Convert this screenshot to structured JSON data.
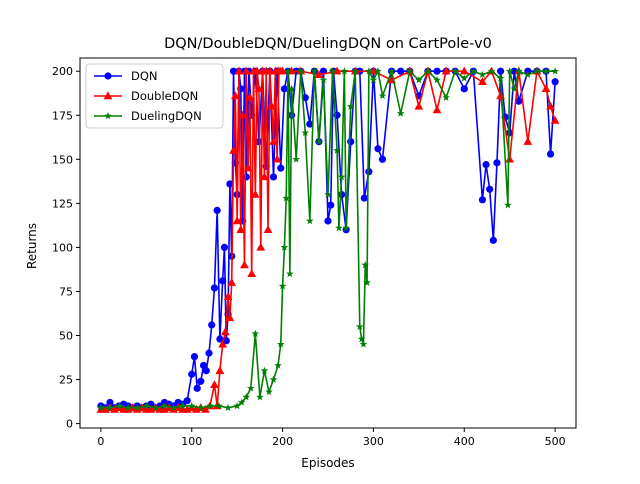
{
  "chart_data": {
    "type": "line",
    "title": "DQN/DoubleDQN/DuelingDQN on CartPole-v0",
    "xlabel": "Episodes",
    "ylabel": "Returns",
    "xlim": [
      -23,
      523
    ],
    "ylim": [
      -2.5,
      207.5
    ],
    "xticks": [
      0,
      100,
      200,
      300,
      400,
      500
    ],
    "yticks": [
      0,
      25,
      50,
      75,
      100,
      125,
      150,
      175,
      200
    ],
    "grid": false,
    "legend_position": "top-left",
    "series": [
      {
        "name": "DQN",
        "color": "#0000ff",
        "marker": "circle",
        "x": [
          0,
          5,
          10,
          15,
          20,
          25,
          30,
          35,
          40,
          45,
          50,
          55,
          60,
          65,
          70,
          75,
          80,
          85,
          90,
          95,
          100,
          103,
          106,
          110,
          113,
          116,
          119,
          122,
          125,
          128,
          131,
          134,
          136,
          138,
          140,
          142,
          144,
          146,
          148,
          150,
          152,
          154,
          156,
          158,
          160,
          163,
          166,
          170,
          174,
          178,
          182,
          186,
          190,
          194,
          198,
          202,
          206,
          210,
          215,
          220,
          225,
          230,
          235,
          240,
          245,
          250,
          253,
          256,
          260,
          265,
          270,
          275,
          280,
          285,
          290,
          295,
          300,
          305,
          310,
          320,
          330,
          340,
          350,
          360,
          370,
          380,
          390,
          400,
          410,
          420,
          424,
          428,
          432,
          436,
          440,
          445,
          450,
          455,
          460,
          470,
          480,
          490,
          495,
          500
        ],
        "y": [
          10,
          9,
          12,
          9,
          10,
          11,
          10,
          9,
          10,
          9,
          10,
          11,
          9,
          10,
          12,
          11,
          10,
          12,
          11,
          13,
          28,
          38,
          20,
          24,
          33,
          30,
          40,
          56,
          77,
          121,
          48,
          81,
          100,
          47,
          62,
          136,
          95,
          200,
          148,
          130,
          200,
          190,
          115,
          200,
          140,
          200,
          175,
          200,
          160,
          200,
          146,
          200,
          140,
          200,
          145,
          190,
          200,
          175,
          200,
          200,
          185,
          170,
          200,
          160,
          200,
          115,
          124,
          200,
          175,
          130,
          110,
          160,
          200,
          200,
          128,
          143,
          200,
          156,
          150,
          200,
          200,
          200,
          186,
          200,
          200,
          200,
          200,
          190,
          200,
          127,
          147,
          133,
          104,
          148,
          200,
          174,
          165,
          200,
          183,
          200,
          200,
          200,
          153,
          194
        ]
      },
      {
        "name": "DoubleDQN",
        "color": "#ff0000",
        "marker": "triangle",
        "x": [
          0,
          5,
          10,
          15,
          20,
          25,
          30,
          35,
          40,
          45,
          50,
          55,
          60,
          65,
          70,
          75,
          80,
          85,
          90,
          95,
          100,
          105,
          110,
          115,
          120,
          125,
          128,
          131,
          134,
          137,
          140,
          142,
          144,
          146,
          148,
          150,
          152,
          154,
          156,
          158,
          160,
          162,
          164,
          166,
          168,
          170,
          172,
          174,
          176,
          178,
          180,
          182,
          184,
          186,
          188,
          190,
          192,
          194,
          196,
          198,
          200,
          210,
          220,
          240,
          260,
          280,
          300,
          320,
          340,
          350,
          360,
          370,
          380,
          400,
          420,
          430,
          440,
          450,
          460,
          470,
          480,
          490,
          495,
          500
        ],
        "y": [
          8,
          8,
          9,
          8,
          9,
          8,
          8,
          9,
          8,
          9,
          8,
          8,
          9,
          8,
          8,
          9,
          8,
          9,
          8,
          8,
          9,
          8,
          9,
          8,
          10,
          22,
          10,
          30,
          45,
          52,
          72,
          60,
          80,
          155,
          186,
          115,
          200,
          110,
          175,
          90,
          200,
          145,
          185,
          85,
          200,
          130,
          200,
          190,
          100,
          200,
          140,
          200,
          110,
          200,
          180,
          160,
          200,
          150,
          200,
          200,
          200,
          200,
          200,
          198,
          200,
          200,
          200,
          195,
          200,
          180,
          200,
          178,
          200,
          200,
          194,
          200,
          186,
          150,
          200,
          160,
          200,
          190,
          180,
          172
        ]
      },
      {
        "name": "DuelingDQN",
        "color": "#008000",
        "marker": "star",
        "x": [
          0,
          10,
          20,
          30,
          40,
          50,
          60,
          70,
          80,
          90,
          100,
          110,
          120,
          130,
          140,
          150,
          155,
          160,
          165,
          170,
          175,
          180,
          185,
          190,
          195,
          198,
          200,
          202,
          204,
          206,
          208,
          210,
          215,
          220,
          225,
          230,
          235,
          240,
          245,
          250,
          255,
          260,
          262,
          265,
          268,
          270,
          275,
          280,
          285,
          287,
          289,
          291,
          293,
          295,
          300,
          305,
          310,
          320,
          330,
          340,
          350,
          360,
          370,
          380,
          390,
          400,
          410,
          420,
          430,
          440,
          448,
          450,
          455,
          460,
          470,
          480,
          490,
          500
        ],
        "y": [
          9,
          9,
          10,
          9,
          9,
          10,
          9,
          10,
          9,
          10,
          10,
          9,
          10,
          10,
          9,
          10,
          12,
          15,
          20,
          51,
          15,
          30,
          18,
          25,
          33,
          45,
          78,
          100,
          128,
          200,
          85,
          190,
          150,
          200,
          165,
          115,
          200,
          160,
          195,
          130,
          200,
          155,
          111,
          140,
          200,
          111,
          180,
          200,
          55,
          48,
          45,
          90,
          80,
          200,
          195,
          200,
          186,
          200,
          176,
          200,
          195,
          200,
          195,
          185,
          200,
          196,
          200,
          198,
          200,
          196,
          124,
          200,
          190,
          200,
          198,
          200,
          200,
          200
        ]
      }
    ]
  }
}
